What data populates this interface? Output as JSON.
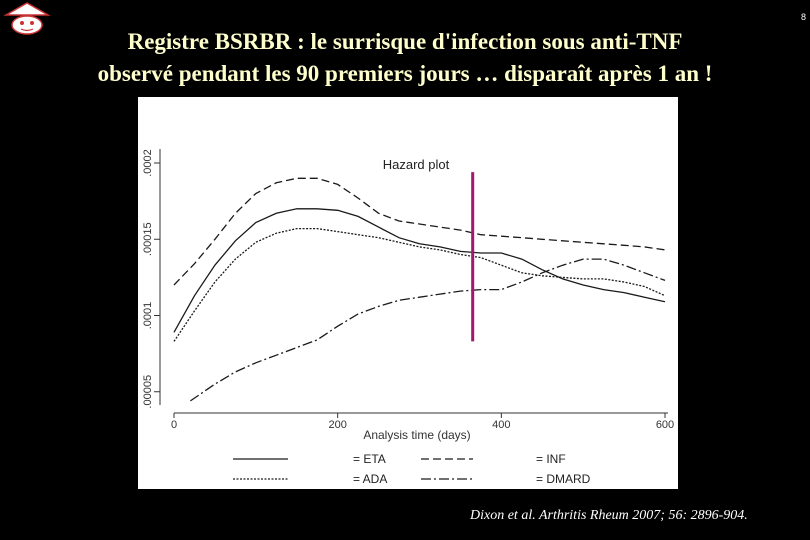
{
  "page": {
    "number": "8",
    "title_line1": "Registre BSRBR : le surrisque d'infection sous anti-TNF",
    "title_line2": "observé pendant les 90 premiers jours … disparaît après 1 an !",
    "citation": "Dixon et al. Arthritis Rheum 2007; 56: 2896-904.",
    "colors": {
      "background": "#000000",
      "title": "#ffffcc",
      "marker": "#a0196e"
    }
  },
  "chart_data": {
    "type": "line",
    "title": "Hazard plot",
    "xlabel": "Analysis time (days)",
    "ylabel": "",
    "xlim": [
      0,
      600
    ],
    "ylim": [
      4e-05,
      0.0002
    ],
    "xticks": [
      0,
      200,
      400,
      600
    ],
    "xtick_labels": [
      "0",
      "200",
      "400",
      "600"
    ],
    "yticks": [
      5e-05,
      0.0001,
      0.00015,
      0.0002
    ],
    "ytick_labels": [
      ".00005",
      ".0001",
      ".00015",
      ".0002"
    ],
    "grid": false,
    "legend_position": "bottom",
    "annotation": {
      "type": "vertical-line",
      "x": 365,
      "y_range": [
        8.3e-05,
        0.000194
      ],
      "color": "#a0196e"
    },
    "series": [
      {
        "name": "= ETA",
        "style": "solid",
        "x": [
          0,
          25,
          50,
          75,
          100,
          125,
          150,
          175,
          200,
          225,
          250,
          275,
          300,
          325,
          350,
          375,
          400,
          425,
          450,
          475,
          500,
          525,
          550,
          575,
          600
        ],
        "y": [
          8.9e-05,
          0.000113,
          0.000133,
          0.000149,
          0.000161,
          0.000167,
          0.00017,
          0.00017,
          0.000169,
          0.000165,
          0.000158,
          0.000151,
          0.000147,
          0.000145,
          0.000142,
          0.000141,
          0.000141,
          0.000137,
          0.00013,
          0.000124,
          0.00012,
          0.000117,
          0.000115,
          0.000112,
          0.000109
        ]
      },
      {
        "name": "= ADA",
        "style": "dotted",
        "x": [
          0,
          25,
          50,
          75,
          100,
          125,
          150,
          175,
          200,
          225,
          250,
          275,
          300,
          325,
          350,
          375,
          400,
          425,
          450,
          475,
          500,
          525,
          550,
          575,
          600
        ],
        "y": [
          8.3e-05,
          0.000103,
          0.000122,
          0.000137,
          0.000148,
          0.000154,
          0.000157,
          0.000157,
          0.000155,
          0.000153,
          0.000151,
          0.000148,
          0.000145,
          0.000143,
          0.00014,
          0.000138,
          0.000133,
          0.000128,
          0.000126,
          0.000125,
          0.000124,
          0.000124,
          0.000122,
          0.000119,
          0.000113
        ]
      },
      {
        "name": "= INF",
        "style": "dashed",
        "x": [
          0,
          25,
          50,
          75,
          100,
          125,
          150,
          175,
          200,
          225,
          250,
          275,
          300,
          325,
          350,
          375,
          400,
          425,
          450,
          475,
          500,
          525,
          550,
          575,
          600
        ],
        "y": [
          0.00012,
          0.000134,
          0.00015,
          0.000167,
          0.00018,
          0.000187,
          0.00019,
          0.00019,
          0.000186,
          0.000177,
          0.000167,
          0.000162,
          0.00016,
          0.000158,
          0.000156,
          0.000153,
          0.000152,
          0.000151,
          0.00015,
          0.000149,
          0.000148,
          0.000147,
          0.000146,
          0.000145,
          0.000143
        ]
      },
      {
        "name": "= DMARD",
        "style": "dashdot",
        "x": [
          20,
          50,
          75,
          100,
          125,
          150,
          175,
          200,
          225,
          250,
          275,
          300,
          325,
          350,
          375,
          400,
          425,
          450,
          475,
          500,
          525,
          550,
          575,
          600
        ],
        "y": [
          4.4e-05,
          5.5e-05,
          6.3e-05,
          6.9e-05,
          7.4e-05,
          7.9e-05,
          8.4e-05,
          9.3e-05,
          0.000101,
          0.000106,
          0.00011,
          0.000112,
          0.000114,
          0.000116,
          0.000117,
          0.000117,
          0.000122,
          0.000128,
          0.000133,
          0.000137,
          0.000137,
          0.000133,
          0.000128,
          0.000123
        ]
      }
    ]
  }
}
